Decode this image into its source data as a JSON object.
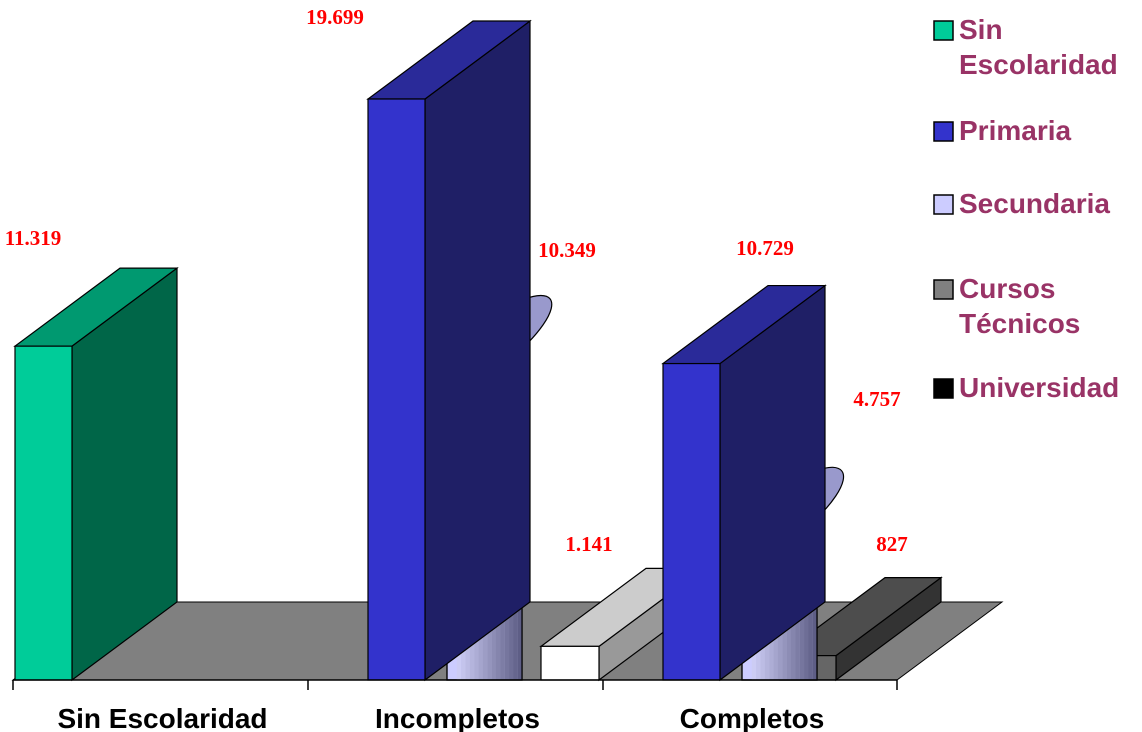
{
  "chart_data": {
    "type": "bar",
    "categories": [
      "Sin Escolaridad",
      "Incompletos",
      "Completos"
    ],
    "series": [
      {
        "name": "Sin Escolaridad",
        "shape": "box",
        "color": "#00cc99",
        "side_color": "#006648",
        "top_color": "#009970",
        "values": [
          11319,
          null,
          null
        ],
        "labels": [
          "11.319",
          null,
          null
        ]
      },
      {
        "name": "Primaria",
        "shape": "box",
        "color": "#3333cc",
        "side_color": "#1f1f66",
        "top_color": "#2a2a99",
        "values": [
          null,
          19699,
          10729
        ],
        "labels": [
          null,
          "19.699",
          "10.729"
        ]
      },
      {
        "name": "Secundaria",
        "shape": "cylinder",
        "color": "#ccccff",
        "side_color": "#66668f",
        "top_color": "#9999cc",
        "values": [
          null,
          10349,
          4757
        ],
        "labels": [
          null,
          "10.349",
          "4.757"
        ]
      },
      {
        "name": "Cursos Técnicos",
        "shape": "box",
        "color": "#ffffff",
        "side_color": "#999999",
        "top_color": "#cccccc",
        "values": [
          null,
          1141,
          null
        ],
        "labels": [
          null,
          "1.141",
          null
        ]
      },
      {
        "name": "Universidad",
        "shape": "box",
        "color": "#666666",
        "side_color": "#333333",
        "top_color": "#4d4d4d",
        "values": [
          null,
          null,
          827
        ],
        "labels": [
          null,
          null,
          "827"
        ]
      }
    ],
    "legend": {
      "position": "right",
      "entries": [
        {
          "lines": [
            "Sin",
            "Escolaridad"
          ],
          "swatch": "#00cc99"
        },
        {
          "lines": [
            "Primaria"
          ],
          "swatch": "#3333cc"
        },
        {
          "lines": [
            "Secundaria"
          ],
          "swatch": "#ccccff"
        },
        {
          "lines": [
            "Cursos",
            "Técnicos"
          ],
          "swatch": "#808080"
        },
        {
          "lines": [
            "Universidad"
          ],
          "swatch": "#000000"
        }
      ]
    },
    "colors": {
      "value_label": "#ff0000",
      "legend_text": "#993366",
      "floor": "#808080"
    },
    "title": "",
    "xlabel": "",
    "ylabel": "",
    "grid": false,
    "projection": "3d"
  }
}
